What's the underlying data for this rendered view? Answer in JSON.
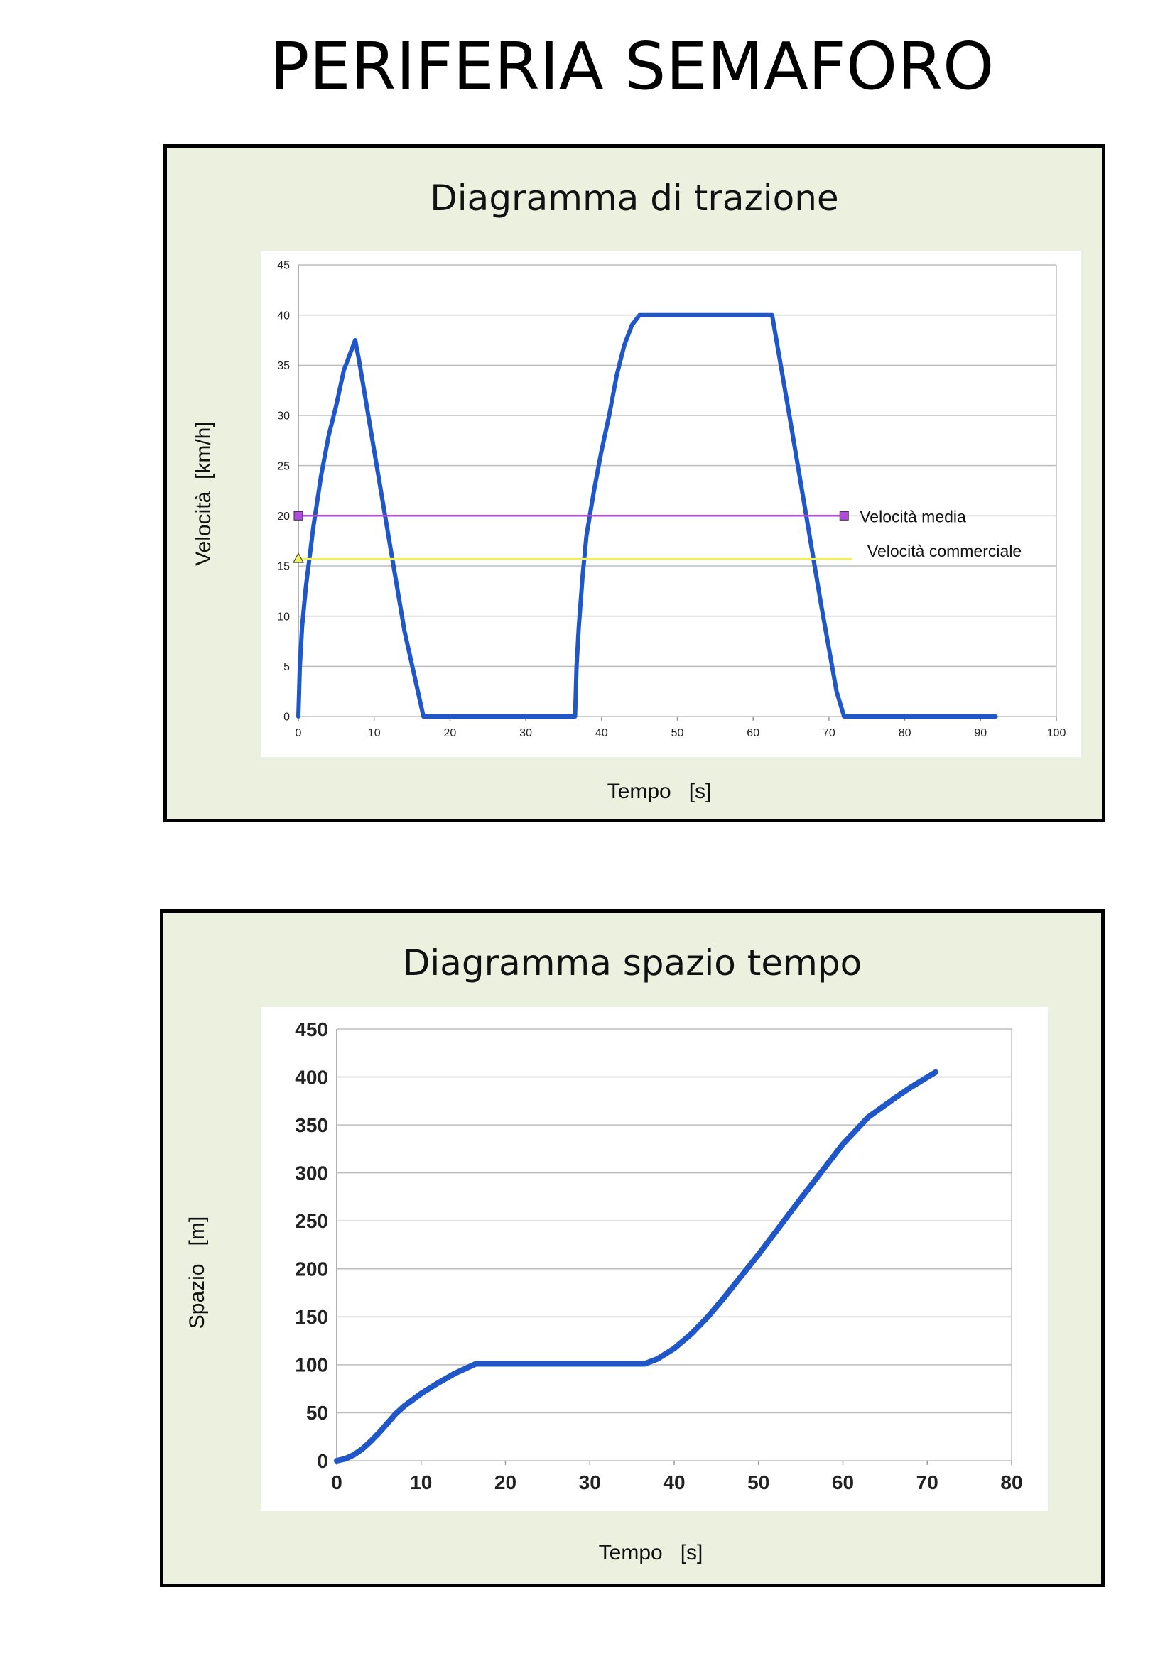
{
  "page": {
    "title": "PERIFERIA SEMAFORO"
  },
  "chart_data": [
    {
      "type": "line",
      "title": "Diagramma di trazione",
      "xlabel": "Tempo   [s]",
      "ylabel": "Velocità  [km/h]",
      "xlim": [
        0,
        100
      ],
      "ylim": [
        0,
        45
      ],
      "xticks": [
        0,
        10,
        20,
        30,
        40,
        50,
        60,
        70,
        80,
        90,
        100
      ],
      "yticks": [
        0,
        5,
        10,
        15,
        20,
        25,
        30,
        35,
        40,
        45
      ],
      "grid": true,
      "series": [
        {
          "name": "",
          "color": "#1f57c8",
          "x": [
            0,
            0.2,
            0.5,
            1,
            2,
            3,
            4,
            5,
            6,
            7,
            7.5,
            8,
            10,
            12,
            14,
            16.5,
            20,
            25,
            30,
            36.5,
            36.7,
            37,
            37.5,
            38,
            39,
            40,
            41,
            42,
            43,
            44,
            45,
            45.5,
            50,
            55,
            60,
            62.5,
            65,
            67,
            69,
            71,
            72,
            80,
            85,
            92
          ],
          "y": [
            0,
            5,
            9,
            13,
            19,
            24,
            28,
            31,
            34.5,
            36.5,
            37.5,
            35.5,
            26.5,
            17.5,
            8.5,
            0,
            0,
            0,
            0,
            0,
            5,
            9,
            14,
            18,
            22.5,
            26.5,
            30,
            34,
            37,
            39,
            40,
            40,
            40,
            40,
            40,
            40,
            29,
            20,
            11,
            2.5,
            0,
            0,
            0,
            0
          ]
        },
        {
          "name": "Velocità media",
          "color": "#b24ae0",
          "marker": "square",
          "x": [
            0,
            72
          ],
          "y": [
            20,
            20
          ]
        },
        {
          "name": "Velocità commerciale",
          "color": "#f2ef5a",
          "marker": "triangle",
          "x": [
            0,
            73
          ],
          "y": [
            15.7,
            15.7
          ]
        }
      ]
    },
    {
      "type": "line",
      "title": "Diagramma spazio tempo",
      "xlabel": "Tempo   [s]",
      "ylabel": "Spazio   [m]",
      "xlim": [
        0,
        80
      ],
      "ylim": [
        0,
        450
      ],
      "xticks": [
        0,
        10,
        20,
        30,
        40,
        50,
        60,
        70,
        80
      ],
      "yticks": [
        0,
        50,
        100,
        150,
        200,
        250,
        300,
        350,
        400,
        450
      ],
      "grid": true,
      "series": [
        {
          "name": "",
          "color": "#1f57c8",
          "x": [
            0,
            1,
            2,
            3,
            4,
            5,
            6,
            7,
            8,
            10,
            12,
            14,
            16.5,
            20,
            25,
            30,
            36.5,
            38,
            40,
            42,
            44,
            46,
            48,
            50,
            55,
            60,
            63,
            66,
            68,
            71
          ],
          "y": [
            0,
            2,
            6,
            12,
            20,
            29,
            39,
            49,
            57,
            70,
            81,
            91,
            101,
            101,
            101,
            101,
            101,
            106,
            117,
            132,
            150,
            171,
            193,
            215,
            273,
            330,
            358,
            377,
            389,
            405
          ]
        }
      ]
    }
  ]
}
